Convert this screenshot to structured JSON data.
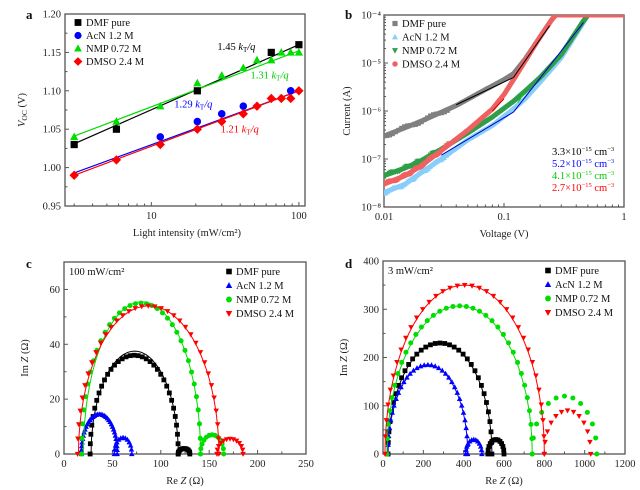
{
  "chart_data": [
    {
      "panel": "a",
      "type": "scatter",
      "xscale": "log",
      "xlabel": "Light intensity (mW/cm²)",
      "ylabel": "V_OC (V)",
      "ylabel_main": "V",
      "ylabel_sub": "OC",
      "ylabel_unit": " (V)",
      "xlim": [
        2.6,
        110
      ],
      "ylim": [
        0.95,
        1.2
      ],
      "xticks": [
        10,
        100
      ],
      "xtick_labels": [
        "10",
        "100"
      ],
      "yticks": [
        0.95,
        1.0,
        1.05,
        1.1,
        1.15,
        1.2
      ],
      "ytick_labels": [
        "0.95",
        "1.00",
        "1.05",
        "1.10",
        "1.15",
        "1.20"
      ],
      "legend_position": "top-left",
      "series": [
        {
          "name": "DMF pure",
          "color": "#000000",
          "marker": "square",
          "x": [
            3,
            5.8,
            20.5,
            65,
            100
          ],
          "y": [
            1.03,
            1.05,
            1.1,
            1.15,
            1.16
          ],
          "fit": {
            "x": [
              3,
              100
            ],
            "y": [
              1.031,
              1.16
            ]
          }
        },
        {
          "name": "AcN 1.2 M",
          "color": "#0000ff",
          "marker": "circle",
          "x": [
            11.5,
            20.5,
            30,
            42,
            88
          ],
          "y": [
            1.04,
            1.06,
            1.07,
            1.08,
            1.1
          ],
          "fit": {
            "x": [
              3,
              100
            ],
            "y": [
              0.993,
              1.1
            ]
          }
        },
        {
          "name": "NMP 0.72 M",
          "color": "#00dd00",
          "marker": "triangle",
          "x": [
            3,
            5.8,
            11.5,
            20.5,
            30,
            42,
            52,
            65,
            76,
            88,
            100
          ],
          "y": [
            1.04,
            1.06,
            1.08,
            1.11,
            1.12,
            1.13,
            1.14,
            1.14,
            1.15,
            1.15,
            1.15
          ],
          "fit": {
            "x": [
              3,
              100
            ],
            "y": [
              1.041,
              1.152
            ]
          }
        },
        {
          "name": "DMSO 2.4 M",
          "color": "#ff0000",
          "marker": "diamond",
          "x": [
            3,
            5.8,
            11.5,
            20.5,
            30,
            42,
            52,
            65,
            76,
            88,
            100
          ],
          "y": [
            0.99,
            1.01,
            1.03,
            1.05,
            1.06,
            1.07,
            1.08,
            1.09,
            1.09,
            1.09,
            1.1
          ],
          "fit": {
            "x": [
              3,
              100
            ],
            "y": [
              0.99,
              1.1
            ]
          }
        }
      ],
      "annotations": [
        {
          "text": "1.45 kT/q",
          "num": "1.45 ",
          "k": "k",
          "sub": "T",
          "tail": "/q",
          "color": "#000000",
          "x": 28,
          "y": 1.153
        },
        {
          "text": "1.31 kT/q",
          "num": "1.31 ",
          "k": "k",
          "sub": "T",
          "tail": "/q",
          "color": "#00cc00",
          "x": 47,
          "y": 1.116
        },
        {
          "text": "1.29 kT/q",
          "num": "1.29 ",
          "k": "k",
          "sub": "T",
          "tail": "/q",
          "color": "#0000ff",
          "x": 14.3,
          "y": 1.078
        },
        {
          "text": "1.21 kT/q",
          "num": "1.21 ",
          "k": "k",
          "sub": "T",
          "tail": "/q",
          "color": "#ff0000",
          "x": 29.5,
          "y": 1.046
        }
      ]
    },
    {
      "panel": "b",
      "type": "line",
      "xscale": "log",
      "yscale": "log",
      "xlabel": "Voltage (V)",
      "ylabel": "Current (A)",
      "xlim": [
        0.01,
        1
      ],
      "ylim": [
        1e-08,
        0.0001
      ],
      "xticks": [
        0.01,
        0.1,
        1
      ],
      "xtick_labels": [
        "0.01",
        "0.1",
        "1"
      ],
      "yticks": [
        1e-08,
        1e-07,
        1e-06,
        1e-05,
        0.0001
      ],
      "ytick_labels": [
        "10⁻⁸",
        "10⁻⁷",
        "10⁻⁶",
        "10⁻⁵",
        "10⁻⁴"
      ],
      "legend_position": "top-left",
      "series": [
        {
          "name": "DMF pure",
          "color": "#808080",
          "marker": "square",
          "x": [
            0.01,
            0.02,
            0.04,
            0.07,
            0.1,
            0.12,
            0.15,
            0.2,
            0.25,
            0.27,
            1.0
          ],
          "y": [
            3e-07,
            6e-07,
            1.3e-06,
            2.8e-06,
            4.5e-06,
            6e-06,
            1.2e-05,
            3.5e-05,
            8e-05,
            0.0001,
            0.0001
          ]
        },
        {
          "name": "AcN 1.2 M",
          "color": "#87cefa",
          "marker": "triangle",
          "x": [
            0.01,
            0.015,
            0.02,
            0.03,
            0.05,
            0.08,
            0.12,
            0.15,
            0.2,
            0.3,
            0.45,
            0.5,
            1.0
          ],
          "y": [
            2e-08,
            3e-08,
            5e-08,
            1e-07,
            2.5e-07,
            5e-07,
            1.1e-06,
            1.8e-06,
            4e-06,
            1.3e-05,
            6.5e-05,
            0.0001,
            0.0001
          ]
        },
        {
          "name": "NMP 0.72 M",
          "color": "#2e9e48",
          "marker": "triangle-down",
          "x": [
            0.01,
            0.015,
            0.02,
            0.03,
            0.05,
            0.08,
            0.12,
            0.15,
            0.2,
            0.3,
            0.45,
            0.5,
            1.0
          ],
          "y": [
            4.5e-08,
            6.5e-08,
            9e-08,
            1.6e-07,
            3.5e-07,
            7.5e-07,
            1.6e-06,
            2.6e-06,
            5e-06,
            1.5e-05,
            7e-05,
            0.0001,
            0.0001
          ]
        },
        {
          "name": "DMSO 2.4 M",
          "color": "#f06060",
          "marker": "circle",
          "x": [
            0.01,
            0.015,
            0.02,
            0.03,
            0.05,
            0.08,
            0.1,
            0.12,
            0.15,
            0.2,
            0.25,
            0.27,
            1.0
          ],
          "y": [
            3e-08,
            4.5e-08,
            7e-08,
            1.5e-07,
            4e-07,
            1.1e-06,
            2.2e-06,
            4.5e-06,
            1.1e-05,
            3.5e-05,
            8e-05,
            0.0001,
            0.0001
          ]
        }
      ],
      "fit_lines": [
        {
          "color": "#000000",
          "x": [
            0.04,
            0.12,
            0.12,
            0.24
          ],
          "y": [
            1.35e-06,
            5e-06,
            5e-06,
            6e-05
          ]
        },
        {
          "color": "#0000cc",
          "x": [
            0.03,
            0.12,
            0.12,
            0.46
          ],
          "y": [
            1.2e-07,
            9.5e-07,
            9.5e-07,
            7e-05
          ]
        },
        {
          "color": "#00cc00",
          "x": [
            0.13,
            0.15
          ],
          "y": [
            1.5e-06,
            2.5e-06
          ]
        },
        {
          "color": "#cc0000",
          "x": [
            0.08,
            0.1
          ],
          "y": [
            1e-06,
            1.8e-06
          ]
        }
      ],
      "annotations": [
        {
          "sup": "−15",
          "base": "3.3×10",
          "unit": " cm",
          "unit_sup": "−3",
          "text": "3.3×10⁻¹⁵ cm⁻³",
          "color": "#000000"
        },
        {
          "sup": "−15",
          "base": "5.2×10",
          "unit": " cm",
          "unit_sup": "−3",
          "text": "5.2×10⁻¹⁵ cm⁻³",
          "color": "#0000ff"
        },
        {
          "sup": "−15",
          "base": "4.1×10",
          "unit": " cm",
          "unit_sup": "−3",
          "text": "4.1×10⁻¹⁵ cm⁻³",
          "color": "#00cc00"
        },
        {
          "sup": "−15",
          "base": "2.7×10",
          "unit": " cm",
          "unit_sup": "−3",
          "text": "2.7×10⁻¹⁵ cm⁻³",
          "color": "#ff0000"
        }
      ]
    },
    {
      "panel": "c",
      "type": "scatter",
      "title": "100 mW/cm²",
      "xlabel": "Re Z (Ω)",
      "ylabel": "Im Z (Ω)",
      "xlim": [
        0,
        250
      ],
      "ylim": [
        0,
        70
      ],
      "xticks": [
        0,
        50,
        100,
        150,
        200,
        250
      ],
      "yticks": [
        0,
        20,
        40,
        60
      ],
      "legend_position": "top-right",
      "series": [
        {
          "name": "DMF pure",
          "color": "#000000",
          "marker": "square",
          "arc": [
            [
              27,
              0,
              118,
              36
            ],
            [
              118,
              0,
              130,
              2
            ]
          ],
          "fit": [
            28,
            118,
            37.5
          ]
        },
        {
          "name": "AcN 1.2 M",
          "color": "#0000ff",
          "marker": "triangle",
          "arc": [
            [
              18,
              0,
              55,
              14.5
            ],
            [
              52,
              0,
              70,
              6
            ]
          ],
          "fit": null
        },
        {
          "name": "NMP 0.72 M",
          "color": "#00dd00",
          "marker": "circle",
          "arc": [
            [
              18,
              0,
              141,
              55
            ],
            [
              141,
              0,
              165,
              7
            ]
          ],
          "fit": [
            20,
            141,
            55.5
          ]
        },
        {
          "name": "DMSO 2.4 M",
          "color": "#ff0000",
          "marker": "triangle-down",
          "arc": [
            [
              14,
              0,
              160,
              54
            ],
            [
              158,
              0,
              185,
              5.5
            ]
          ],
          "fit": [
            15,
            160,
            54
          ]
        }
      ]
    },
    {
      "panel": "d",
      "type": "scatter",
      "title": "3 mW/cm²",
      "xlabel": "Re Z (Ω)",
      "ylabel": "Im Z (Ω)",
      "xlim": [
        0,
        1200
      ],
      "ylim": [
        0,
        400
      ],
      "xticks": [
        0,
        200,
        400,
        600,
        800,
        1000,
        1200
      ],
      "yticks": [
        0,
        100,
        200,
        300,
        400
      ],
      "legend_position": "top-right",
      "series": [
        {
          "name": "DMF pure",
          "color": "#000000",
          "marker": "square",
          "arc": [
            [
              25,
              0,
              540,
              230
            ],
            [
              520,
              0,
              600,
              30
            ]
          ],
          "fit": [
            25,
            540,
            230
          ]
        },
        {
          "name": "AcN 1.2 M",
          "color": "#0000ff",
          "marker": "triangle",
          "arc": [
            [
              25,
              0,
              420,
              185
            ],
            [
              410,
              0,
              490,
              30
            ]
          ],
          "fit": [
            25,
            420,
            185
          ]
        },
        {
          "name": "NMP 0.72 M",
          "color": "#00dd00",
          "marker": "circle",
          "arc": [
            [
              20,
              0,
              740,
              307
            ],
            [
              740,
              0,
              1060,
              120
            ]
          ],
          "fit": [
            20,
            740,
            307
          ]
        },
        {
          "name": "DMSO 2.4 M",
          "color": "#ff0000",
          "marker": "triangle-down",
          "arc": [
            [
              10,
              0,
              800,
              350
            ],
            [
              800,
              0,
              1030,
              90
            ]
          ],
          "fit": [
            10,
            800,
            350
          ]
        }
      ]
    }
  ]
}
